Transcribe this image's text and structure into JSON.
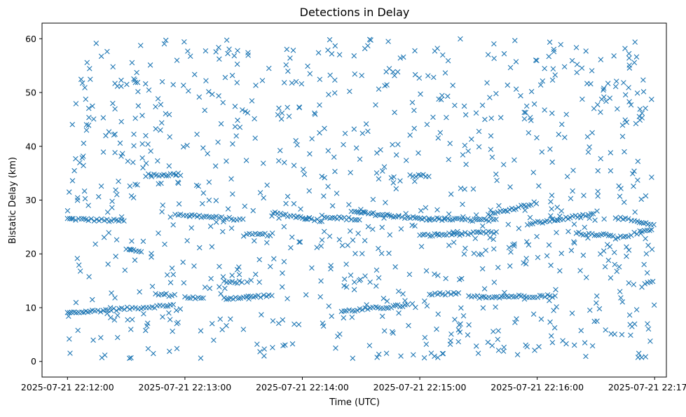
{
  "chart_data": {
    "type": "scatter",
    "title": "Detections in Delay",
    "xlabel": "Time (UTC)",
    "ylabel": "Bistatic Delay (km)",
    "x_unit": "time_utc",
    "xlim": [
      "2025-07-21 22:11:47",
      "2025-07-21 22:17:06"
    ],
    "ylim": [
      -2.9,
      62.9
    ],
    "x_ticks": [
      "2025-07-21 22:12:00",
      "2025-07-21 22:13:00",
      "2025-07-21 22:14:00",
      "2025-07-21 22:15:00",
      "2025-07-21 22:16:00",
      "2025-07-21 22:17:00"
    ],
    "y_ticks": [
      0,
      10,
      20,
      30,
      40,
      50,
      60
    ],
    "marker": "x",
    "color": "#1f77b4",
    "grid": false,
    "legend": "none",
    "series": [
      {
        "x_range": [
          "2025-07-21 22:12:00",
          "2025-07-21 22:17:00"
        ],
        "tracks": [
          {
            "start": [
              "2025-07-21 22:12:00",
              26.5
            ],
            "end": [
              "2025-07-21 22:12:30",
              26.1
            ]
          },
          {
            "start": [
              "2025-07-21 22:12:00",
              9.0
            ],
            "end": [
              "2025-07-21 22:12:55",
              10.5
            ]
          },
          {
            "start": [
              "2025-07-21 22:12:30",
              20.8
            ],
            "end": [
              "2025-07-21 22:12:38",
              20.5
            ]
          },
          {
            "start": [
              "2025-07-21 22:12:40",
              34.6
            ],
            "end": [
              "2025-07-21 22:12:58",
              34.8
            ]
          },
          {
            "start": [
              "2025-07-21 22:12:55",
              27.4
            ],
            "end": [
              "2025-07-21 22:13:30",
              26.3
            ]
          },
          {
            "start": [
              "2025-07-21 22:12:45",
              12.5
            ],
            "end": [
              "2025-07-21 22:12:55",
              12.3
            ]
          },
          {
            "start": [
              "2025-07-21 22:13:00",
              12.0
            ],
            "end": [
              "2025-07-21 22:13:10",
              11.6
            ]
          },
          {
            "start": [
              "2025-07-21 22:13:20",
              11.7
            ],
            "end": [
              "2025-07-21 22:13:45",
              12.3
            ]
          },
          {
            "start": [
              "2025-07-21 22:13:20",
              14.7
            ],
            "end": [
              "2025-07-21 22:13:30",
              14.8
            ]
          },
          {
            "start": [
              "2025-07-21 22:13:30",
              23.5
            ],
            "end": [
              "2025-07-21 22:13:45",
              23.6
            ]
          },
          {
            "start": [
              "2025-07-21 22:13:45",
              27.6
            ],
            "end": [
              "2025-07-21 22:14:10",
              26.2
            ]
          },
          {
            "start": [
              "2025-07-21 22:14:10",
              27.0
            ],
            "end": [
              "2025-07-21 22:14:30",
              26.3
            ]
          },
          {
            "start": [
              "2025-07-21 22:14:20",
              9.3
            ],
            "end": [
              "2025-07-21 22:14:55",
              10.5
            ]
          },
          {
            "start": [
              "2025-07-21 22:14:25",
              27.8
            ],
            "end": [
              "2025-07-21 22:15:05",
              26.4
            ]
          },
          {
            "start": [
              "2025-07-21 22:14:55",
              34.6
            ],
            "end": [
              "2025-07-21 22:15:05",
              34.5
            ]
          },
          {
            "start": [
              "2025-07-21 22:15:00",
              23.4
            ],
            "end": [
              "2025-07-21 22:15:40",
              24.0
            ]
          },
          {
            "start": [
              "2025-07-21 22:15:05",
              12.4
            ],
            "end": [
              "2025-07-21 22:15:20",
              12.7
            ]
          },
          {
            "start": [
              "2025-07-21 22:15:05",
              26.5
            ],
            "end": [
              "2025-07-21 22:15:40",
              26.2
            ]
          },
          {
            "start": [
              "2025-07-21 22:15:25",
              12.0
            ],
            "end": [
              "2025-07-21 22:16:10",
              12.2
            ]
          },
          {
            "start": [
              "2025-07-21 22:15:35",
              27.2
            ],
            "end": [
              "2025-07-21 22:16:00",
              29.6
            ]
          },
          {
            "start": [
              "2025-07-21 22:15:55",
              25.5
            ],
            "end": [
              "2025-07-21 22:16:30",
              27.5
            ]
          },
          {
            "start": [
              "2025-07-21 22:16:20",
              23.8
            ],
            "end": [
              "2025-07-21 22:16:40",
              23.5
            ]
          },
          {
            "start": [
              "2025-07-21 22:16:40",
              26.8
            ],
            "end": [
              "2025-07-21 22:17:00",
              25.2
            ]
          },
          {
            "start": [
              "2025-07-21 22:16:40",
              22.8
            ],
            "end": [
              "2025-07-21 22:17:00",
              24.8
            ]
          },
          {
            "start": [
              "2025-07-21 22:16:55",
              14.6
            ],
            "end": [
              "2025-07-21 22:17:00",
              14.8
            ]
          }
        ],
        "noise": {
          "y_range": [
            0.5,
            60
          ]
        }
      }
    ]
  }
}
